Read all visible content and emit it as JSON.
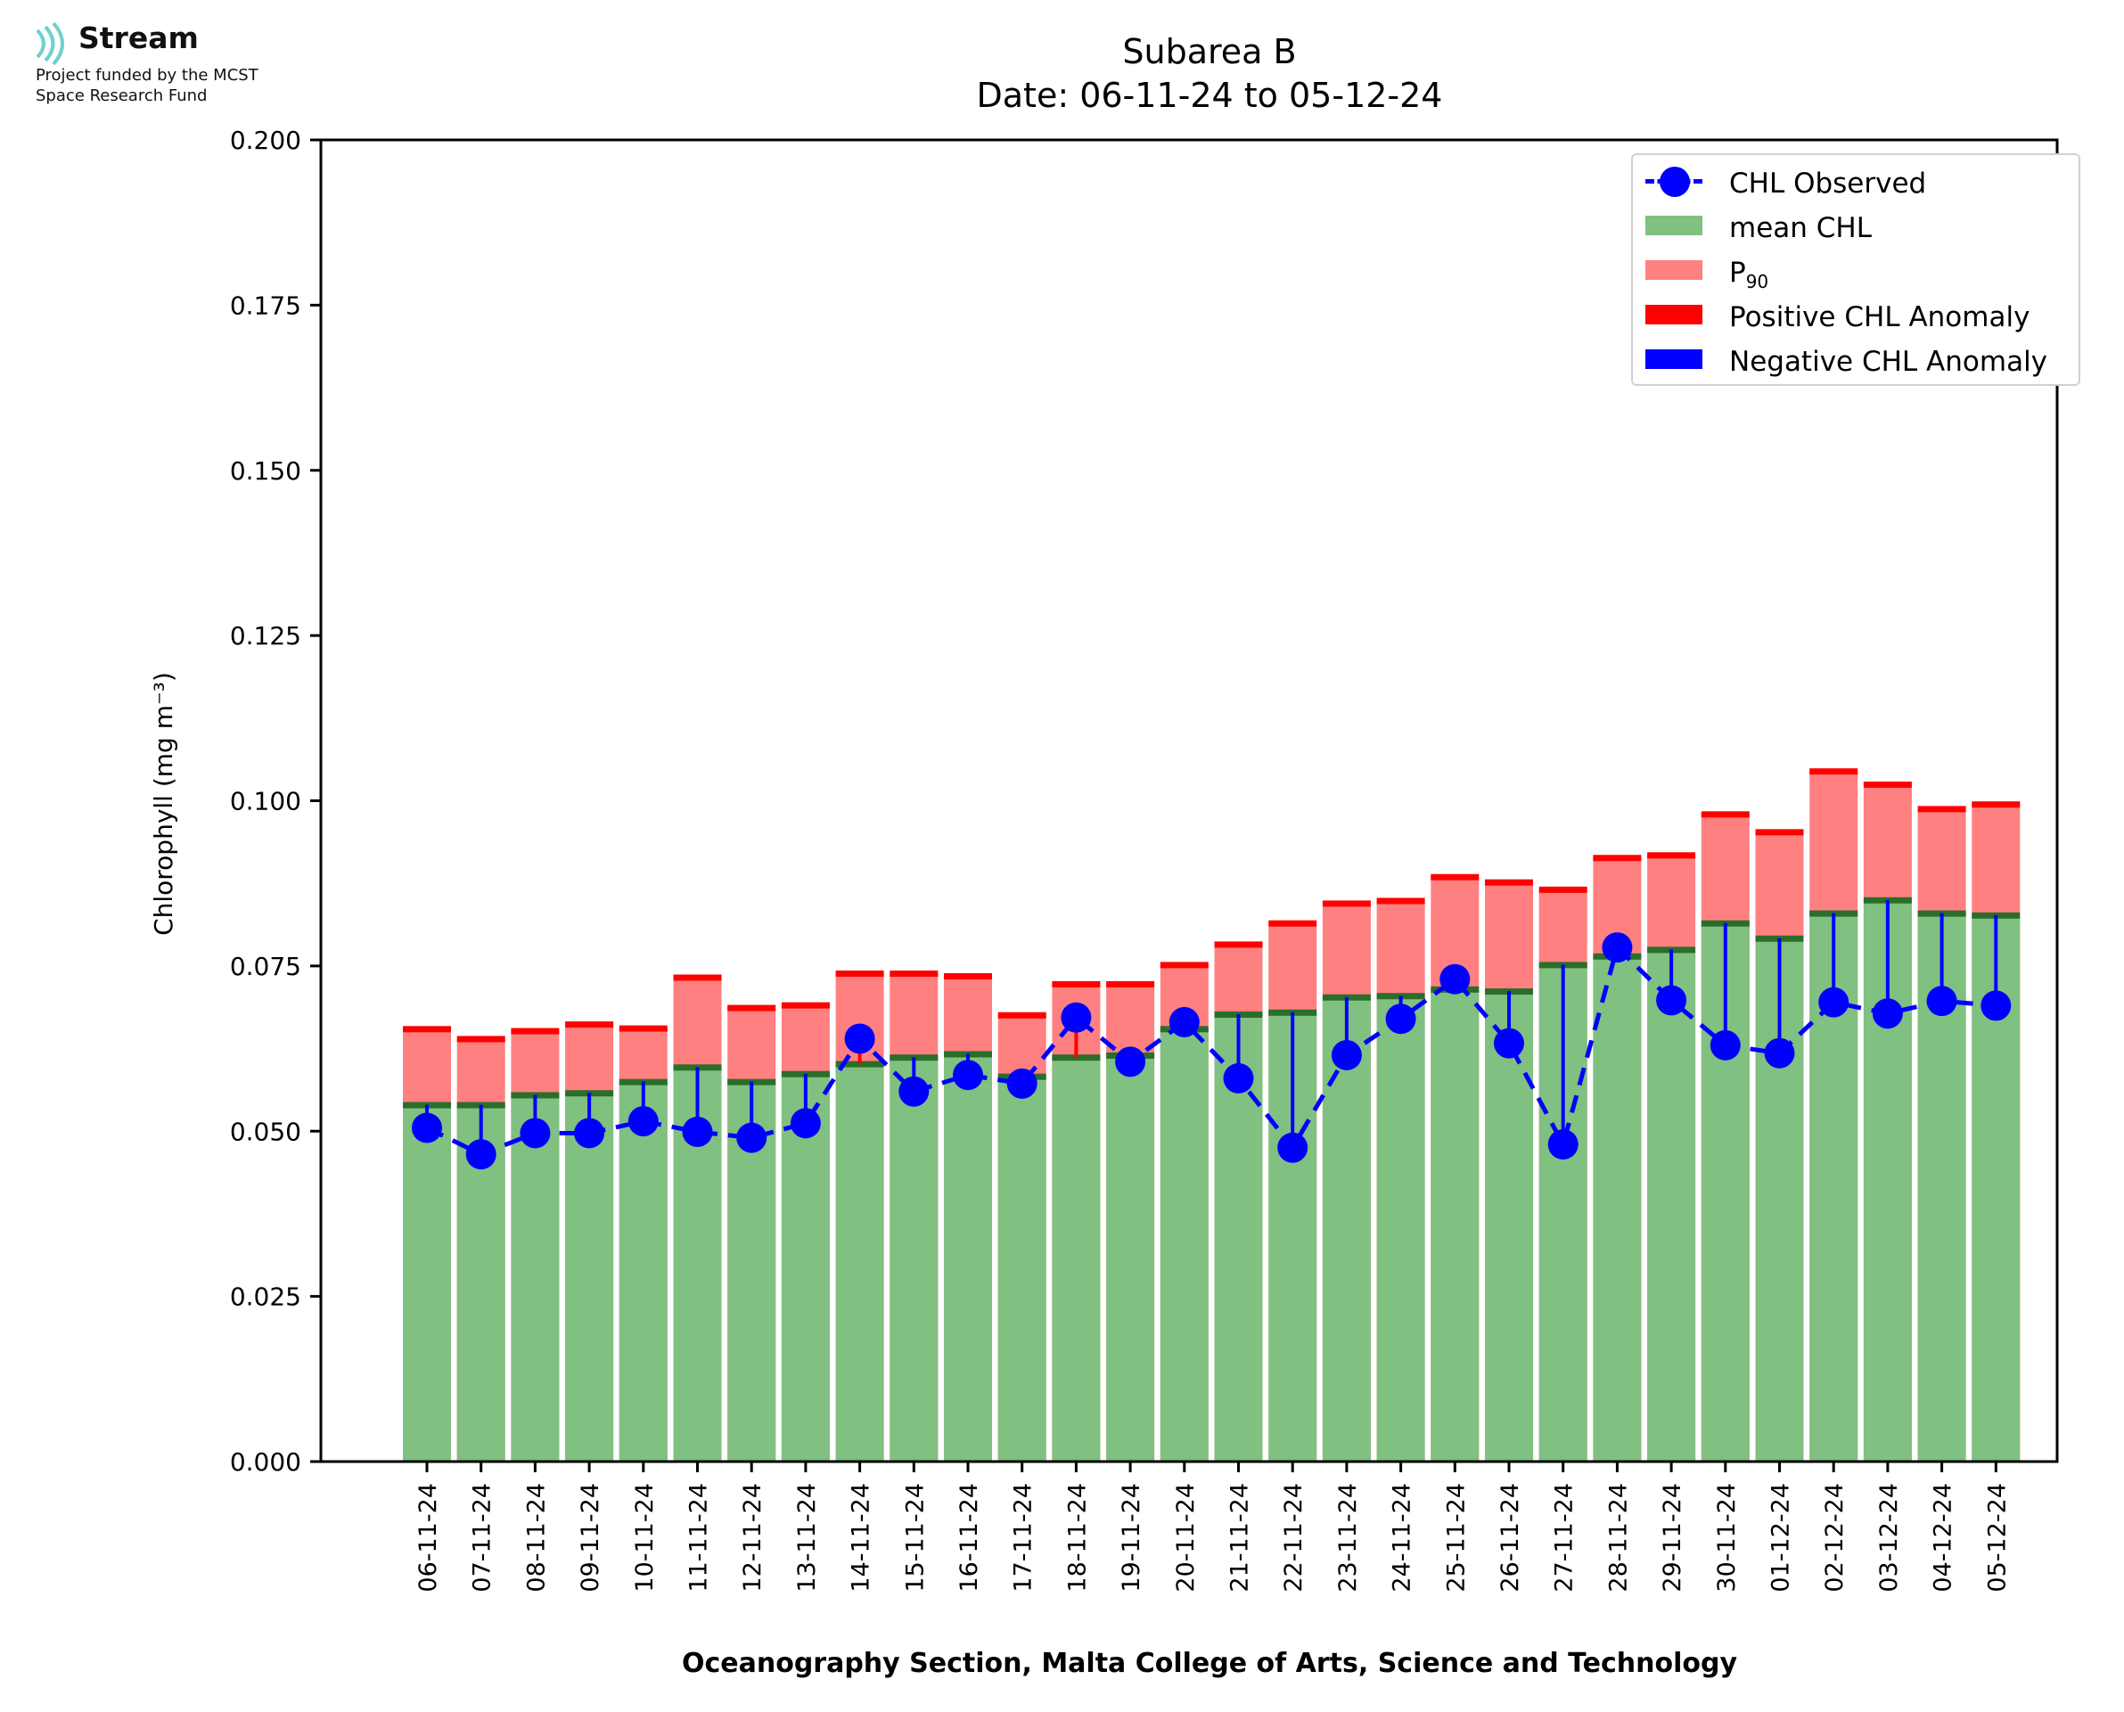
{
  "header": {
    "logo_name": "Stream",
    "funding_line_1": "Project funded by the MCST",
    "funding_line_2": "Space Research Fund",
    "logo_icon": "stream-waves-icon"
  },
  "colors": {
    "mean": "#80c080",
    "p90": "#ff8080",
    "positive": "#ff0000",
    "negative": "#0000ff",
    "observed": "#0000ff",
    "mean_top": "#2a6e2a"
  },
  "chart_data": {
    "type": "bar",
    "title": "Subarea B",
    "subtitle": "Date: 06-11-24 to 05-12-24",
    "xlabel": "Oceanography Section, Malta College of Arts, Science and Technology",
    "ylabel": "Chlorophyll (mg m⁻³)",
    "ylim": [
      0,
      0.2
    ],
    "yticks": [
      "0.000",
      "0.025",
      "0.050",
      "0.075",
      "0.100",
      "0.125",
      "0.150",
      "0.175",
      "0.200"
    ],
    "legend_position": "top-right",
    "legend": {
      "observed": "CHL Observed",
      "mean": "mean CHL",
      "p90_base": "P",
      "p90_sub": "90",
      "positive": "Positive CHL Anomaly",
      "negative": "Negative CHL Anomaly"
    },
    "categories": [
      "06-11-24",
      "07-11-24",
      "08-11-24",
      "09-11-24",
      "10-11-24",
      "11-11-24",
      "12-11-24",
      "13-11-24",
      "14-11-24",
      "15-11-24",
      "16-11-24",
      "17-11-24",
      "18-11-24",
      "19-11-24",
      "20-11-24",
      "21-11-24",
      "22-11-24",
      "23-11-24",
      "24-11-24",
      "25-11-24",
      "26-11-24",
      "27-11-24",
      "28-11-24",
      "29-11-24",
      "30-11-24",
      "01-12-24",
      "02-12-24",
      "03-12-24",
      "04-12-24",
      "05-12-24"
    ],
    "series": [
      {
        "name": "mean CHL",
        "values": [
          0.054,
          0.054,
          0.0555,
          0.0558,
          0.0575,
          0.0597,
          0.0575,
          0.0587,
          0.0602,
          0.0612,
          0.0617,
          0.0583,
          0.0612,
          0.0615,
          0.0655,
          0.0677,
          0.068,
          0.0703,
          0.0705,
          0.0715,
          0.0712,
          0.0752,
          0.0765,
          0.0775,
          0.0815,
          0.0792,
          0.083,
          0.085,
          0.083,
          0.0827
        ]
      },
      {
        "name": "P90",
        "values": [
          0.0655,
          0.064,
          0.0652,
          0.0662,
          0.0656,
          0.0733,
          0.0687,
          0.0691,
          0.0739,
          0.0739,
          0.0735,
          0.0676,
          0.0723,
          0.0723,
          0.0752,
          0.0783,
          0.0815,
          0.0845,
          0.0849,
          0.0885,
          0.0877,
          0.0866,
          0.0914,
          0.0918,
          0.098,
          0.0953,
          0.1045,
          0.1025,
          0.0988,
          0.0995
        ]
      },
      {
        "name": "CHL Observed",
        "values": [
          0.0505,
          0.0465,
          0.0497,
          0.0497,
          0.0515,
          0.0499,
          0.049,
          0.0512,
          0.064,
          0.056,
          0.0585,
          0.0572,
          0.0672,
          0.0605,
          0.0665,
          0.058,
          0.0475,
          0.0615,
          0.067,
          0.073,
          0.0633,
          0.048,
          0.0778,
          0.0698,
          0.063,
          0.0618,
          0.0695,
          0.0678,
          0.0697,
          0.069
        ]
      }
    ]
  }
}
